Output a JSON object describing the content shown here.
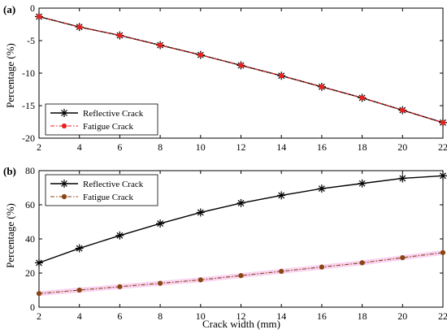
{
  "chart_data": [
    {
      "panel_label": "(a)",
      "type": "line",
      "x": [
        2,
        4,
        6,
        8,
        10,
        12,
        14,
        16,
        18,
        20,
        22
      ],
      "xlabel": "",
      "ylabel": "Percentage (%)",
      "xlim": [
        2,
        22
      ],
      "ylim": [
        -20,
        0
      ],
      "xticks": [
        2,
        4,
        6,
        8,
        10,
        12,
        14,
        16,
        18,
        20,
        22
      ],
      "yticks": [
        -20,
        -15,
        -10,
        -5,
        0
      ],
      "grid": false,
      "legend_position": "bottom-left",
      "series": [
        {
          "name": "Reflective Crack",
          "values": [
            -1.3,
            -2.9,
            -4.2,
            -5.7,
            -7.2,
            -8.8,
            -10.4,
            -12.1,
            -13.8,
            -15.7,
            -17.6
          ],
          "color": "#000000",
          "line": "solid",
          "marker": "asterisk"
        },
        {
          "name": "Fatigue Crack",
          "values": [
            -1.3,
            -2.9,
            -4.2,
            -5.7,
            -7.2,
            -8.8,
            -10.4,
            -12.1,
            -13.8,
            -15.7,
            -17.6
          ],
          "color": "#e8201e",
          "line": "dashed",
          "marker": "dot"
        }
      ]
    },
    {
      "panel_label": "(b)",
      "type": "line",
      "x": [
        2,
        4,
        6,
        8,
        10,
        12,
        14,
        16,
        18,
        20,
        22
      ],
      "xlabel": "Crack width (mm)",
      "ylabel": "Percentage (%)",
      "xlim": [
        2,
        22
      ],
      "ylim": [
        0,
        80
      ],
      "xticks": [
        2,
        4,
        6,
        8,
        10,
        12,
        14,
        16,
        18,
        20,
        22
      ],
      "yticks": [
        0,
        20,
        40,
        60,
        80
      ],
      "grid": false,
      "legend_position": "top-left",
      "series": [
        {
          "name": "Reflective Crack",
          "values": [
            26,
            34.5,
            42,
            49,
            55.5,
            61,
            65.5,
            69.5,
            72.5,
            75.5,
            77
          ],
          "color": "#000000",
          "line": "solid",
          "marker": "asterisk"
        },
        {
          "name": "Fatigue Crack",
          "values": [
            8,
            10,
            12,
            14,
            16,
            18.5,
            21,
            23.5,
            26,
            29,
            32
          ],
          "color": "#8b4513",
          "line": "dashed",
          "marker": "dot",
          "band_color": "#f7c8ef"
        }
      ]
    }
  ]
}
